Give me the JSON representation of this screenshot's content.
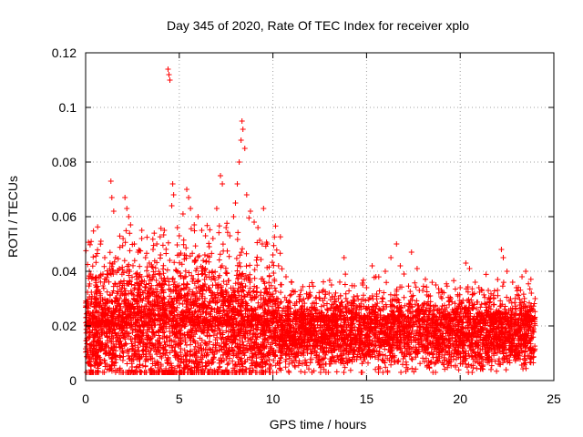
{
  "chart_data": {
    "type": "scatter",
    "title": "Day 345 of 2020, Rate Of TEC Index for receiver xplo",
    "xlabel": "GPS time / hours",
    "ylabel": "ROTI / TECUs",
    "xlim": [
      0,
      25
    ],
    "ylim": [
      0,
      0.12
    ],
    "xticks": [
      0,
      5,
      10,
      15,
      20,
      25
    ],
    "xtick_labels": [
      "0",
      "5",
      "10",
      "15",
      "20",
      "25"
    ],
    "yticks": [
      0,
      0.02,
      0.04,
      0.06,
      0.08,
      0.1,
      0.12
    ],
    "ytick_labels": [
      "0",
      "0.02",
      "0.04",
      "0.06",
      "0.08",
      "0.1",
      "0.12"
    ],
    "grid": true,
    "marker": "plus",
    "color": "#ff0000",
    "series": [
      {
        "points": [
          [
            0.1,
            0.018
          ],
          [
            0.2,
            0.04
          ],
          [
            0.3,
            0.03
          ],
          [
            0.4,
            0.025
          ],
          [
            0.6,
            0.033
          ],
          [
            0.8,
            0.029
          ],
          [
            1.0,
            0.036
          ],
          [
            1.2,
            0.039
          ],
          [
            1.35,
            0.073
          ],
          [
            1.4,
            0.067
          ],
          [
            1.5,
            0.062
          ],
          [
            1.6,
            0.045
          ],
          [
            1.8,
            0.041
          ],
          [
            2.0,
            0.052
          ],
          [
            2.1,
            0.067
          ],
          [
            2.2,
            0.063
          ],
          [
            2.3,
            0.06
          ],
          [
            2.4,
            0.057
          ],
          [
            2.6,
            0.05
          ],
          [
            2.8,
            0.047
          ],
          [
            3.0,
            0.055
          ],
          [
            3.2,
            0.045
          ],
          [
            3.4,
            0.043
          ],
          [
            3.6,
            0.048
          ],
          [
            3.8,
            0.05
          ],
          [
            4.0,
            0.046
          ],
          [
            4.2,
            0.055
          ],
          [
            4.4,
            0.114
          ],
          [
            4.45,
            0.112
          ],
          [
            4.5,
            0.11
          ],
          [
            4.6,
            0.064
          ],
          [
            4.65,
            0.072
          ],
          [
            4.7,
            0.068
          ],
          [
            4.9,
            0.056
          ],
          [
            5.0,
            0.053
          ],
          [
            5.2,
            0.061
          ],
          [
            5.4,
            0.07
          ],
          [
            5.5,
            0.067
          ],
          [
            5.6,
            0.063
          ],
          [
            5.8,
            0.057
          ],
          [
            6.0,
            0.06
          ],
          [
            6.2,
            0.055
          ],
          [
            6.4,
            0.053
          ],
          [
            6.6,
            0.049
          ],
          [
            6.8,
            0.052
          ],
          [
            7.0,
            0.063
          ],
          [
            7.2,
            0.075
          ],
          [
            7.3,
            0.072
          ],
          [
            7.5,
            0.056
          ],
          [
            7.7,
            0.053
          ],
          [
            7.9,
            0.06
          ],
          [
            8.0,
            0.065
          ],
          [
            8.1,
            0.072
          ],
          [
            8.2,
            0.08
          ],
          [
            8.3,
            0.088
          ],
          [
            8.35,
            0.095
          ],
          [
            8.4,
            0.092
          ],
          [
            8.5,
            0.085
          ],
          [
            8.6,
            0.068
          ],
          [
            8.8,
            0.062
          ],
          [
            9.0,
            0.058
          ],
          [
            9.2,
            0.056
          ],
          [
            9.5,
            0.063
          ],
          [
            9.7,
            0.05
          ],
          [
            10.0,
            0.046
          ],
          [
            10.3,
            0.042
          ],
          [
            10.7,
            0.038
          ],
          [
            11.0,
            0.036
          ],
          [
            11.5,
            0.033
          ],
          [
            12.0,
            0.031
          ],
          [
            12.5,
            0.03
          ],
          [
            13.0,
            0.032
          ],
          [
            13.5,
            0.03
          ],
          [
            13.8,
            0.045
          ],
          [
            14.0,
            0.028
          ],
          [
            14.5,
            0.031
          ],
          [
            14.8,
            0.035
          ],
          [
            15.0,
            0.034
          ],
          [
            15.3,
            0.042
          ],
          [
            15.5,
            0.038
          ],
          [
            16.0,
            0.04
          ],
          [
            16.3,
            0.045
          ],
          [
            16.6,
            0.05
          ],
          [
            16.8,
            0.042
          ],
          [
            17.0,
            0.039
          ],
          [
            17.4,
            0.047
          ],
          [
            17.7,
            0.041
          ],
          [
            18.0,
            0.033
          ],
          [
            18.4,
            0.031
          ],
          [
            18.7,
            0.035
          ],
          [
            19.0,
            0.033
          ],
          [
            19.5,
            0.03
          ],
          [
            20.0,
            0.034
          ],
          [
            20.3,
            0.043
          ],
          [
            20.5,
            0.041
          ],
          [
            20.8,
            0.036
          ],
          [
            21.0,
            0.034
          ],
          [
            21.5,
            0.033
          ],
          [
            22.0,
            0.037
          ],
          [
            22.2,
            0.048
          ],
          [
            22.3,
            0.045
          ],
          [
            22.5,
            0.04
          ],
          [
            22.8,
            0.036
          ],
          [
            23.0,
            0.034
          ],
          [
            23.3,
            0.038
          ],
          [
            23.5,
            0.04
          ],
          [
            23.8,
            0.032
          ],
          [
            24.0,
            0.03
          ]
        ]
      }
    ]
  }
}
